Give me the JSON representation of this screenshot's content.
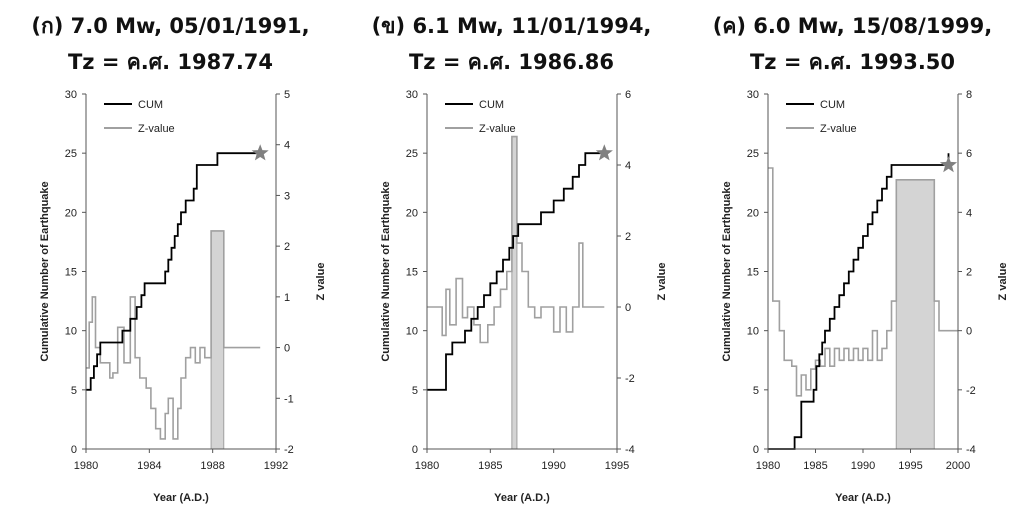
{
  "colors": {
    "cum": "#000000",
    "zvalue": "#a0a0a0",
    "shade": "#d4d4d4",
    "star": "#808080"
  },
  "chart_data": [
    {
      "type": "line",
      "title_line1": "(ก) 7.0 Mw, 05/01/1991,",
      "title_line2": "Tz = ค.ศ. 1987.74",
      "xlabel": "Year (A.D.)",
      "ylabel": "Cumulative Number of Earthquake",
      "y2label": "Z value",
      "xlim": [
        1980,
        1992
      ],
      "xticks": [
        1980,
        1984,
        1988,
        1992
      ],
      "ylim": [
        0,
        30
      ],
      "yticks": [
        0,
        5,
        10,
        15,
        20,
        25,
        30
      ],
      "y2lim": [
        -2,
        5
      ],
      "y2ticks": [
        -2,
        -1,
        0,
        1,
        2,
        3,
        4,
        5
      ],
      "legend": [
        "CUM",
        "Z-value"
      ],
      "star": {
        "x": 1991.0,
        "y": 25
      },
      "shade": {
        "x0": 1987.9,
        "x1": 1988.7,
        "z": 2.3
      },
      "cum": [
        [
          1980,
          5
        ],
        [
          1980.3,
          6
        ],
        [
          1980.5,
          7
        ],
        [
          1980.7,
          8
        ],
        [
          1980.9,
          9
        ],
        [
          1982.3,
          10
        ],
        [
          1982.8,
          11
        ],
        [
          1983.2,
          12
        ],
        [
          1983.5,
          13
        ],
        [
          1983.7,
          14
        ],
        [
          1985.0,
          15
        ],
        [
          1985.2,
          16
        ],
        [
          1985.4,
          17
        ],
        [
          1985.6,
          18
        ],
        [
          1985.8,
          19
        ],
        [
          1986.0,
          20
        ],
        [
          1986.3,
          21
        ],
        [
          1986.8,
          22
        ],
        [
          1987.0,
          24
        ],
        [
          1988.3,
          25
        ],
        [
          1991.0,
          25
        ]
      ],
      "zvalue": [
        [
          1980,
          -0.4
        ],
        [
          1980.2,
          0.5
        ],
        [
          1980.4,
          1.0
        ],
        [
          1980.6,
          0.0
        ],
        [
          1980.9,
          -0.3
        ],
        [
          1981.5,
          -0.6
        ],
        [
          1981.7,
          -0.5
        ],
        [
          1982.0,
          0.4
        ],
        [
          1982.4,
          -0.3
        ],
        [
          1982.8,
          1.0
        ],
        [
          1983.1,
          -0.2
        ],
        [
          1983.4,
          -0.6
        ],
        [
          1983.8,
          -0.8
        ],
        [
          1984.1,
          -1.2
        ],
        [
          1984.4,
          -1.6
        ],
        [
          1984.7,
          -1.8
        ],
        [
          1985.0,
          -1.3
        ],
        [
          1985.2,
          -1.0
        ],
        [
          1985.5,
          -1.8
        ],
        [
          1985.8,
          -1.2
        ],
        [
          1986.0,
          -0.6
        ],
        [
          1986.3,
          -0.2
        ],
        [
          1986.6,
          0.0
        ],
        [
          1986.9,
          -0.3
        ],
        [
          1987.2,
          0.0
        ],
        [
          1987.5,
          -0.2
        ],
        [
          1987.9,
          2.3
        ],
        [
          1988.7,
          0.0
        ],
        [
          1991.0,
          0.0
        ]
      ]
    },
    {
      "type": "line",
      "title_line1": "(ข) 6.1 Mw, 11/01/1994,",
      "title_line2": "Tz = ค.ศ. 1986.86",
      "xlabel": "Year (A.D.)",
      "ylabel": "Cumulative Number of Earthquake",
      "y2label": "Z value",
      "xlim": [
        1980,
        1995
      ],
      "xticks": [
        1980,
        1985,
        1990,
        1995
      ],
      "ylim": [
        0,
        30
      ],
      "yticks": [
        0,
        5,
        10,
        15,
        20,
        25,
        30
      ],
      "y2lim": [
        -4,
        6
      ],
      "y2ticks": [
        -4,
        -2,
        0,
        2,
        4,
        6
      ],
      "legend": [
        "CUM",
        "Z-value"
      ],
      "star": {
        "x": 1994.0,
        "y": 25
      },
      "shade": {
        "x0": 1986.7,
        "x1": 1987.1,
        "z": 4.8
      },
      "cum": [
        [
          1980,
          5
        ],
        [
          1981.5,
          8
        ],
        [
          1982.0,
          9
        ],
        [
          1983.0,
          10
        ],
        [
          1983.5,
          11
        ],
        [
          1984.0,
          12
        ],
        [
          1984.5,
          13
        ],
        [
          1985.0,
          14
        ],
        [
          1985.5,
          15
        ],
        [
          1986.0,
          16
        ],
        [
          1986.5,
          17
        ],
        [
          1986.8,
          18
        ],
        [
          1987.2,
          19
        ],
        [
          1989.0,
          20
        ],
        [
          1990.0,
          21
        ],
        [
          1990.8,
          22
        ],
        [
          1991.5,
          23
        ],
        [
          1992.0,
          24
        ],
        [
          1992.5,
          25
        ],
        [
          1994.0,
          25
        ]
      ],
      "zvalue": [
        [
          1980,
          0.0
        ],
        [
          1981.2,
          -0.8
        ],
        [
          1981.5,
          0.5
        ],
        [
          1981.8,
          -0.5
        ],
        [
          1982.3,
          0.8
        ],
        [
          1982.8,
          -0.3
        ],
        [
          1983.2,
          0.0
        ],
        [
          1983.7,
          -0.5
        ],
        [
          1984.2,
          -1.0
        ],
        [
          1984.8,
          -0.5
        ],
        [
          1985.3,
          0.0
        ],
        [
          1985.8,
          0.5
        ],
        [
          1986.3,
          1.0
        ],
        [
          1986.7,
          4.8
        ],
        [
          1987.1,
          1.8
        ],
        [
          1987.5,
          1.0
        ],
        [
          1988.0,
          0.0
        ],
        [
          1988.5,
          -0.3
        ],
        [
          1989.0,
          0.0
        ],
        [
          1989.5,
          0.0
        ],
        [
          1990.0,
          -0.7
        ],
        [
          1990.5,
          0.0
        ],
        [
          1991.0,
          -0.7
        ],
        [
          1991.5,
          0.0
        ],
        [
          1992.0,
          1.8
        ],
        [
          1992.3,
          0.0
        ],
        [
          1994.0,
          0.0
        ]
      ]
    },
    {
      "type": "line",
      "title_line1": "(ค) 6.0 Mw, 15/08/1999,",
      "title_line2": "Tz = ค.ศ. 1993.50",
      "xlabel": "Year (A.D.)",
      "ylabel": "Cumulative Number of Earthquake",
      "y2label": "Z value",
      "xlim": [
        1980,
        2000
      ],
      "xticks": [
        1980,
        1985,
        1990,
        1995,
        2000
      ],
      "ylim": [
        0,
        30
      ],
      "yticks": [
        0,
        5,
        10,
        15,
        20,
        25,
        30
      ],
      "y2lim": [
        -4,
        8
      ],
      "y2ticks": [
        -4,
        -2,
        0,
        2,
        4,
        6,
        8
      ],
      "legend": [
        "CUM",
        "Z-value"
      ],
      "star": {
        "x": 1999.0,
        "y": 24
      },
      "shade": {
        "x0": 1993.5,
        "x1": 1997.5,
        "z": 5.1
      },
      "cum": [
        [
          1980,
          0
        ],
        [
          1982.8,
          1
        ],
        [
          1983.5,
          4
        ],
        [
          1984.8,
          5
        ],
        [
          1985.1,
          7
        ],
        [
          1985.4,
          8
        ],
        [
          1985.7,
          9
        ],
        [
          1986.0,
          10
        ],
        [
          1986.5,
          11
        ],
        [
          1987.0,
          12
        ],
        [
          1987.5,
          13
        ],
        [
          1988.0,
          14
        ],
        [
          1988.5,
          15
        ],
        [
          1989.0,
          16
        ],
        [
          1989.5,
          17
        ],
        [
          1990.0,
          18
        ],
        [
          1990.5,
          19
        ],
        [
          1991.0,
          20
        ],
        [
          1991.5,
          21
        ],
        [
          1992.0,
          22
        ],
        [
          1992.5,
          23
        ],
        [
          1993.0,
          24
        ],
        [
          1998.0,
          24
        ],
        [
          1999.0,
          25
        ]
      ],
      "zvalue": [
        [
          1980,
          5.5
        ],
        [
          1980.5,
          1.0
        ],
        [
          1981.2,
          0.0
        ],
        [
          1981.7,
          -1.0
        ],
        [
          1982.5,
          -1.2
        ],
        [
          1983.0,
          -2.2
        ],
        [
          1983.5,
          -1.5
        ],
        [
          1984.0,
          -2.0
        ],
        [
          1984.5,
          -1.3
        ],
        [
          1985.0,
          -1.0
        ],
        [
          1985.5,
          -1.2
        ],
        [
          1986.0,
          -0.6
        ],
        [
          1986.5,
          -1.2
        ],
        [
          1987.0,
          -0.6
        ],
        [
          1987.5,
          -1.0
        ],
        [
          1988.0,
          -0.6
        ],
        [
          1988.5,
          -1.0
        ],
        [
          1989.0,
          -0.6
        ],
        [
          1989.5,
          -1.0
        ],
        [
          1990.0,
          -0.6
        ],
        [
          1990.5,
          -1.0
        ],
        [
          1991.0,
          0.0
        ],
        [
          1991.5,
          -1.0
        ],
        [
          1992.0,
          -0.6
        ],
        [
          1992.5,
          0.0
        ],
        [
          1993.0,
          1.0
        ],
        [
          1993.5,
          5.1
        ],
        [
          1997.5,
          1.0
        ],
        [
          1998.0,
          0.0
        ],
        [
          2000.0,
          0.0
        ]
      ]
    }
  ]
}
